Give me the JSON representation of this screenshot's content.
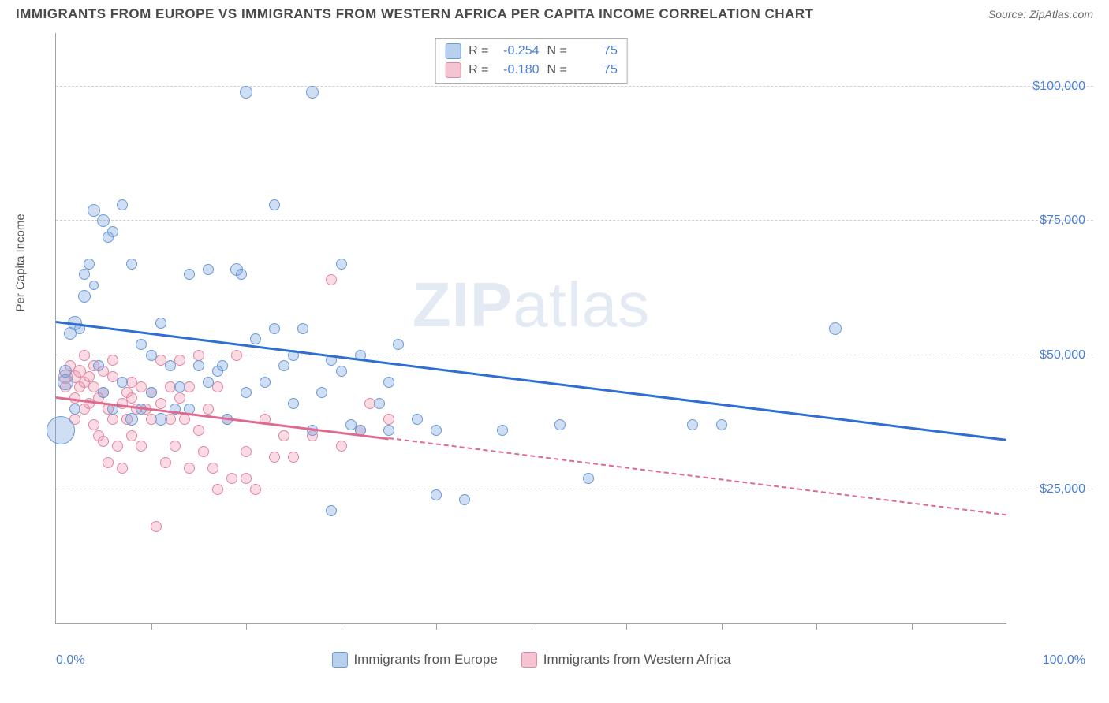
{
  "header": {
    "title": "IMMIGRANTS FROM EUROPE VS IMMIGRANTS FROM WESTERN AFRICA PER CAPITA INCOME CORRELATION CHART",
    "source": "Source: ZipAtlas.com"
  },
  "watermark": {
    "zip": "ZIP",
    "atlas": "atlas"
  },
  "chart": {
    "type": "scatter",
    "y_axis_title": "Per Capita Income",
    "xlim": [
      0,
      100
    ],
    "ylim": [
      0,
      110000
    ],
    "xmin_label": "0.0%",
    "xmax_label": "100.0%",
    "y_gridlines": [
      25000,
      50000,
      75000,
      100000
    ],
    "y_labels": [
      "$25,000",
      "$50,000",
      "$75,000",
      "$100,000"
    ],
    "x_ticks": [
      10,
      20,
      30,
      40,
      50,
      60,
      70,
      80,
      90
    ],
    "grid_color": "#d0d0d0",
    "axis_color": "#9aa5b1",
    "series": [
      {
        "name": "Immigrants from Europe",
        "fill": "rgba(120,160,220,0.35)",
        "stroke": "#6a9bd8",
        "swatch_fill": "#b7d0ee",
        "swatch_stroke": "#6a9bd8",
        "trend_color": "#2f6fd0",
        "trend": {
          "x1": 0,
          "y1": 56000,
          "x2": 100,
          "y2": 34000,
          "solid_until": 100
        },
        "R": "-0.254",
        "N": "75",
        "points": [
          {
            "x": 0.5,
            "y": 36000,
            "r": 18
          },
          {
            "x": 1,
            "y": 45000,
            "r": 10
          },
          {
            "x": 1,
            "y": 47000,
            "r": 8
          },
          {
            "x": 1.5,
            "y": 54000,
            "r": 8
          },
          {
            "x": 2,
            "y": 40000,
            "r": 7
          },
          {
            "x": 2,
            "y": 56000,
            "r": 9
          },
          {
            "x": 2.5,
            "y": 55000,
            "r": 7
          },
          {
            "x": 3,
            "y": 61000,
            "r": 8
          },
          {
            "x": 3,
            "y": 65000,
            "r": 7
          },
          {
            "x": 3.5,
            "y": 67000,
            "r": 7
          },
          {
            "x": 4,
            "y": 77000,
            "r": 8
          },
          {
            "x": 4,
            "y": 63000,
            "r": 6
          },
          {
            "x": 4.5,
            "y": 48000,
            "r": 7
          },
          {
            "x": 5,
            "y": 75000,
            "r": 8
          },
          {
            "x": 5,
            "y": 43000,
            "r": 7
          },
          {
            "x": 5.5,
            "y": 72000,
            "r": 7
          },
          {
            "x": 6,
            "y": 73000,
            "r": 7
          },
          {
            "x": 6,
            "y": 40000,
            "r": 7
          },
          {
            "x": 7,
            "y": 78000,
            "r": 7
          },
          {
            "x": 7,
            "y": 45000,
            "r": 7
          },
          {
            "x": 8,
            "y": 67000,
            "r": 7
          },
          {
            "x": 8,
            "y": 38000,
            "r": 8
          },
          {
            "x": 9,
            "y": 52000,
            "r": 7
          },
          {
            "x": 9,
            "y": 40000,
            "r": 7
          },
          {
            "x": 10,
            "y": 50000,
            "r": 7
          },
          {
            "x": 10,
            "y": 43000,
            "r": 7
          },
          {
            "x": 11,
            "y": 56000,
            "r": 7
          },
          {
            "x": 11,
            "y": 38000,
            "r": 8
          },
          {
            "x": 12,
            "y": 48000,
            "r": 7
          },
          {
            "x": 12.5,
            "y": 40000,
            "r": 7
          },
          {
            "x": 13,
            "y": 44000,
            "r": 7
          },
          {
            "x": 14,
            "y": 65000,
            "r": 7
          },
          {
            "x": 14,
            "y": 40000,
            "r": 7
          },
          {
            "x": 15,
            "y": 48000,
            "r": 7
          },
          {
            "x": 16,
            "y": 45000,
            "r": 7
          },
          {
            "x": 16,
            "y": 66000,
            "r": 7
          },
          {
            "x": 17,
            "y": 47000,
            "r": 7
          },
          {
            "x": 17.5,
            "y": 48000,
            "r": 7
          },
          {
            "x": 18,
            "y": 38000,
            "r": 7
          },
          {
            "x": 19,
            "y": 66000,
            "r": 8
          },
          {
            "x": 19.5,
            "y": 65000,
            "r": 7
          },
          {
            "x": 20,
            "y": 99000,
            "r": 8
          },
          {
            "x": 20,
            "y": 43000,
            "r": 7
          },
          {
            "x": 21,
            "y": 53000,
            "r": 7
          },
          {
            "x": 22,
            "y": 45000,
            "r": 7
          },
          {
            "x": 23,
            "y": 78000,
            "r": 7
          },
          {
            "x": 23,
            "y": 55000,
            "r": 7
          },
          {
            "x": 24,
            "y": 48000,
            "r": 7
          },
          {
            "x": 25,
            "y": 41000,
            "r": 7
          },
          {
            "x": 25,
            "y": 50000,
            "r": 7
          },
          {
            "x": 26,
            "y": 55000,
            "r": 7
          },
          {
            "x": 27,
            "y": 36000,
            "r": 7
          },
          {
            "x": 27,
            "y": 99000,
            "r": 8
          },
          {
            "x": 28,
            "y": 43000,
            "r": 7
          },
          {
            "x": 29,
            "y": 49000,
            "r": 7
          },
          {
            "x": 29,
            "y": 21000,
            "r": 7
          },
          {
            "x": 30,
            "y": 67000,
            "r": 7
          },
          {
            "x": 30,
            "y": 47000,
            "r": 7
          },
          {
            "x": 31,
            "y": 37000,
            "r": 7
          },
          {
            "x": 32,
            "y": 50000,
            "r": 7
          },
          {
            "x": 32,
            "y": 36000,
            "r": 7
          },
          {
            "x": 34,
            "y": 41000,
            "r": 7
          },
          {
            "x": 35,
            "y": 45000,
            "r": 7
          },
          {
            "x": 35,
            "y": 36000,
            "r": 7
          },
          {
            "x": 36,
            "y": 52000,
            "r": 7
          },
          {
            "x": 38,
            "y": 38000,
            "r": 7
          },
          {
            "x": 40,
            "y": 36000,
            "r": 7
          },
          {
            "x": 40,
            "y": 24000,
            "r": 7
          },
          {
            "x": 43,
            "y": 23000,
            "r": 7
          },
          {
            "x": 47,
            "y": 36000,
            "r": 7
          },
          {
            "x": 53,
            "y": 37000,
            "r": 7
          },
          {
            "x": 56,
            "y": 27000,
            "r": 7
          },
          {
            "x": 67,
            "y": 37000,
            "r": 7
          },
          {
            "x": 70,
            "y": 37000,
            "r": 7
          },
          {
            "x": 82,
            "y": 55000,
            "r": 8
          }
        ]
      },
      {
        "name": "Immigrants from Western Africa",
        "fill": "rgba(240,150,175,0.35)",
        "stroke": "#e089a4",
        "swatch_fill": "#f4c4d2",
        "swatch_stroke": "#e089a4",
        "trend_color": "#e06a8e",
        "trend": {
          "x1": 0,
          "y1": 42000,
          "x2": 100,
          "y2": 20000,
          "solid_until": 35
        },
        "R": "-0.180",
        "N": "75",
        "points": [
          {
            "x": 1,
            "y": 46000,
            "r": 9
          },
          {
            "x": 1,
            "y": 44000,
            "r": 7
          },
          {
            "x": 1.5,
            "y": 48000,
            "r": 7
          },
          {
            "x": 2,
            "y": 46000,
            "r": 8
          },
          {
            "x": 2,
            "y": 42000,
            "r": 7
          },
          {
            "x": 2,
            "y": 38000,
            "r": 7
          },
          {
            "x": 2.5,
            "y": 47000,
            "r": 8
          },
          {
            "x": 2.5,
            "y": 44000,
            "r": 7
          },
          {
            "x": 3,
            "y": 45000,
            "r": 7
          },
          {
            "x": 3,
            "y": 40000,
            "r": 7
          },
          {
            "x": 3,
            "y": 50000,
            "r": 7
          },
          {
            "x": 3.5,
            "y": 41000,
            "r": 7
          },
          {
            "x": 3.5,
            "y": 46000,
            "r": 7
          },
          {
            "x": 4,
            "y": 37000,
            "r": 7
          },
          {
            "x": 4,
            "y": 44000,
            "r": 7
          },
          {
            "x": 4,
            "y": 48000,
            "r": 7
          },
          {
            "x": 4.5,
            "y": 42000,
            "r": 7
          },
          {
            "x": 4.5,
            "y": 35000,
            "r": 7
          },
          {
            "x": 5,
            "y": 43000,
            "r": 7
          },
          {
            "x": 5,
            "y": 47000,
            "r": 7
          },
          {
            "x": 5,
            "y": 34000,
            "r": 7
          },
          {
            "x": 5.5,
            "y": 40000,
            "r": 7
          },
          {
            "x": 5.5,
            "y": 30000,
            "r": 7
          },
          {
            "x": 6,
            "y": 38000,
            "r": 7
          },
          {
            "x": 6,
            "y": 46000,
            "r": 7
          },
          {
            "x": 6,
            "y": 49000,
            "r": 7
          },
          {
            "x": 6.5,
            "y": 33000,
            "r": 7
          },
          {
            "x": 7,
            "y": 41000,
            "r": 7
          },
          {
            "x": 7,
            "y": 29000,
            "r": 7
          },
          {
            "x": 7.5,
            "y": 43000,
            "r": 7
          },
          {
            "x": 7.5,
            "y": 38000,
            "r": 7
          },
          {
            "x": 8,
            "y": 45000,
            "r": 7
          },
          {
            "x": 8,
            "y": 35000,
            "r": 7
          },
          {
            "x": 8,
            "y": 42000,
            "r": 7
          },
          {
            "x": 8.5,
            "y": 40000,
            "r": 7
          },
          {
            "x": 9,
            "y": 33000,
            "r": 7
          },
          {
            "x": 9,
            "y": 44000,
            "r": 7
          },
          {
            "x": 9.5,
            "y": 40000,
            "r": 7
          },
          {
            "x": 10,
            "y": 43000,
            "r": 7
          },
          {
            "x": 10,
            "y": 38000,
            "r": 7
          },
          {
            "x": 10.5,
            "y": 18000,
            "r": 7
          },
          {
            "x": 11,
            "y": 41000,
            "r": 7
          },
          {
            "x": 11,
            "y": 49000,
            "r": 7
          },
          {
            "x": 11.5,
            "y": 30000,
            "r": 7
          },
          {
            "x": 12,
            "y": 44000,
            "r": 7
          },
          {
            "x": 12,
            "y": 38000,
            "r": 7
          },
          {
            "x": 12.5,
            "y": 33000,
            "r": 7
          },
          {
            "x": 13,
            "y": 42000,
            "r": 7
          },
          {
            "x": 13,
            "y": 49000,
            "r": 7
          },
          {
            "x": 13.5,
            "y": 38000,
            "r": 7
          },
          {
            "x": 14,
            "y": 44000,
            "r": 7
          },
          {
            "x": 14,
            "y": 29000,
            "r": 7
          },
          {
            "x": 15,
            "y": 36000,
            "r": 7
          },
          {
            "x": 15,
            "y": 50000,
            "r": 7
          },
          {
            "x": 15.5,
            "y": 32000,
            "r": 7
          },
          {
            "x": 16,
            "y": 40000,
            "r": 7
          },
          {
            "x": 16.5,
            "y": 29000,
            "r": 7
          },
          {
            "x": 17,
            "y": 44000,
            "r": 7
          },
          {
            "x": 17,
            "y": 25000,
            "r": 7
          },
          {
            "x": 18,
            "y": 38000,
            "r": 7
          },
          {
            "x": 18.5,
            "y": 27000,
            "r": 7
          },
          {
            "x": 19,
            "y": 50000,
            "r": 7
          },
          {
            "x": 20,
            "y": 32000,
            "r": 7
          },
          {
            "x": 20,
            "y": 27000,
            "r": 7
          },
          {
            "x": 21,
            "y": 25000,
            "r": 7
          },
          {
            "x": 22,
            "y": 38000,
            "r": 7
          },
          {
            "x": 23,
            "y": 31000,
            "r": 7
          },
          {
            "x": 24,
            "y": 35000,
            "r": 7
          },
          {
            "x": 25,
            "y": 31000,
            "r": 7
          },
          {
            "x": 27,
            "y": 35000,
            "r": 7
          },
          {
            "x": 29,
            "y": 64000,
            "r": 7
          },
          {
            "x": 30,
            "y": 33000,
            "r": 7
          },
          {
            "x": 32,
            "y": 36000,
            "r": 7
          },
          {
            "x": 33,
            "y": 41000,
            "r": 7
          },
          {
            "x": 35,
            "y": 38000,
            "r": 7
          }
        ]
      }
    ]
  },
  "legend_top": {
    "R_label": "R =",
    "N_label": "N ="
  },
  "legend_bottom": {
    "label1": "Immigrants from Europe",
    "label2": "Immigrants from Western Africa"
  }
}
